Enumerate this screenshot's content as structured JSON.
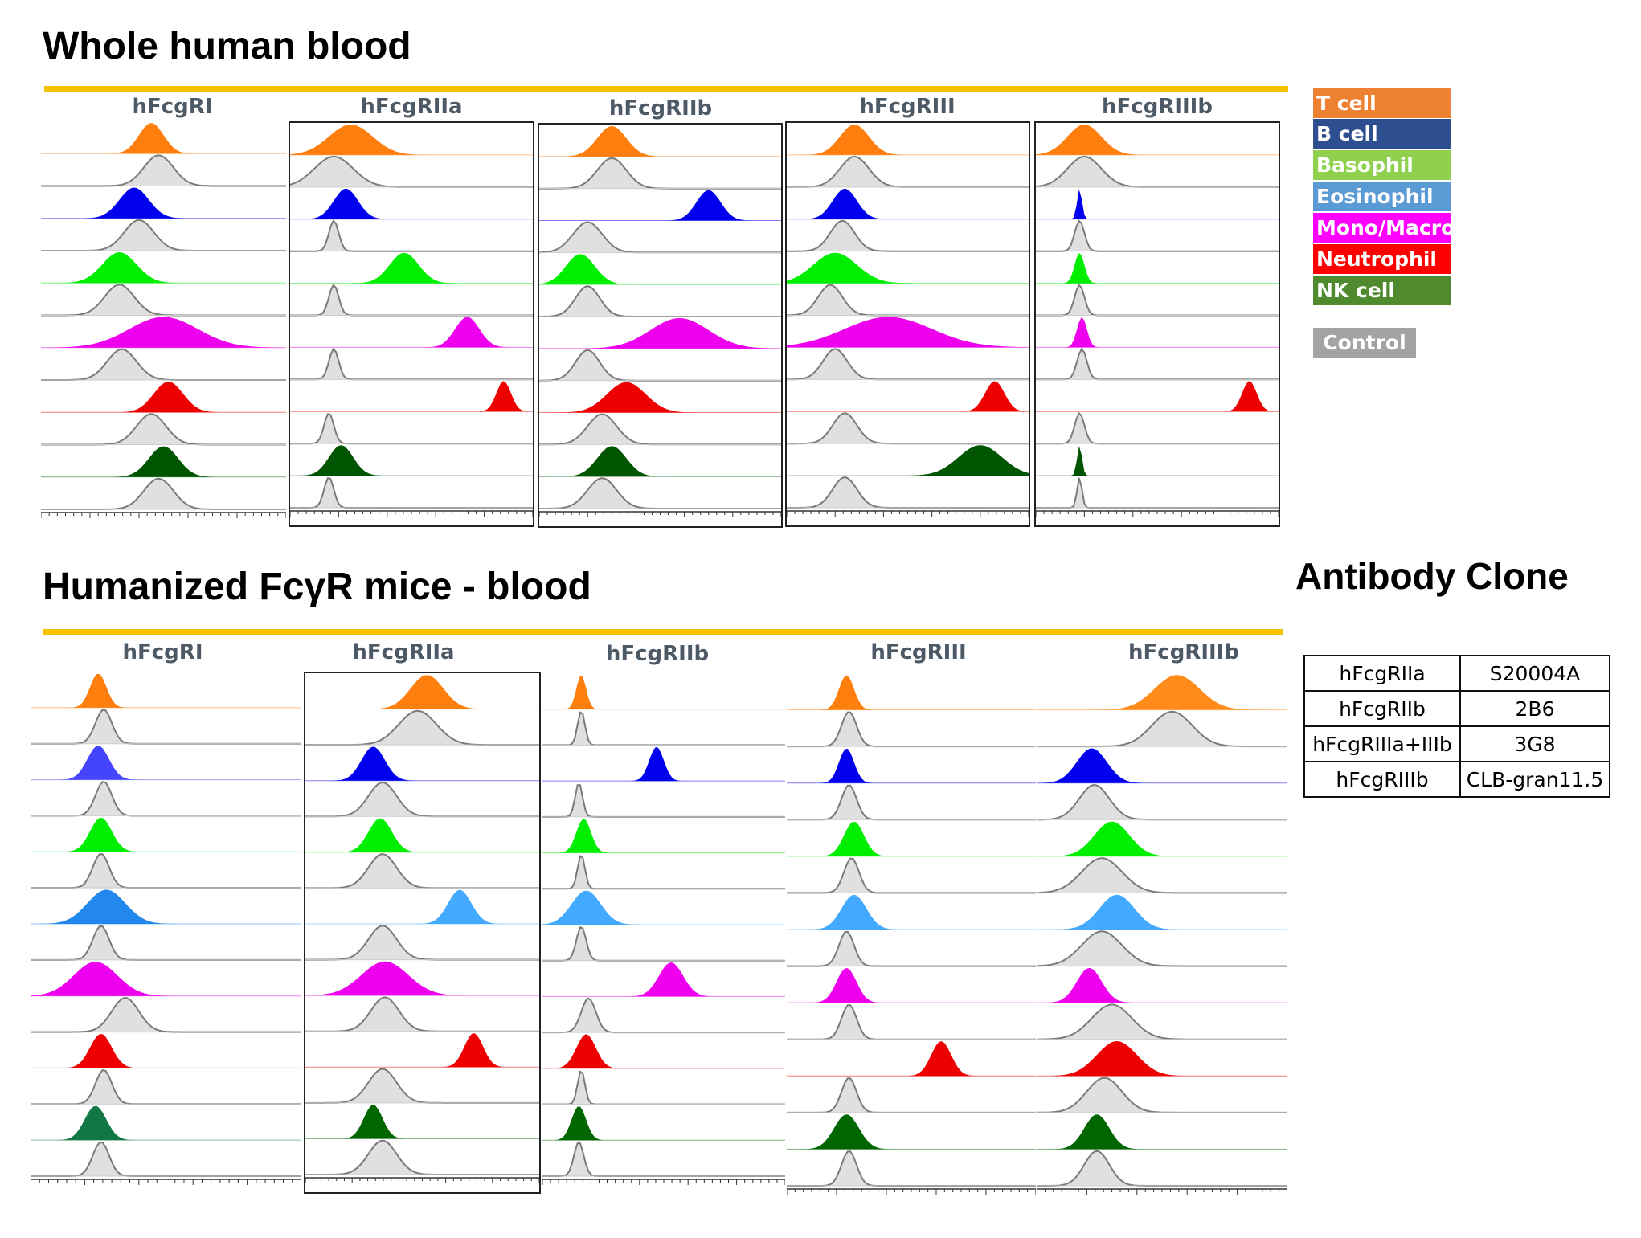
{
  "sections": [
    {
      "title": "Whole human blood"
    },
    {
      "title": "Humanized FcγR mice - blood"
    }
  ],
  "legend": {
    "items": [
      {
        "label": "T cell",
        "color": "#ef8133"
      },
      {
        "label": "B cell",
        "color": "#2e4f8f"
      },
      {
        "label": "Basophil",
        "color": "#8fd14f"
      },
      {
        "label": "Eosinophil",
        "color": "#5b9bd5"
      },
      {
        "label": "Mono/Macro",
        "color": "#ff00ff"
      },
      {
        "label": "Neutrophil",
        "color": "#ff0000"
      },
      {
        "label": "NK cell",
        "color": "#4f8a2f"
      }
    ],
    "control": "Control"
  },
  "clone_table": {
    "title": "Antibody  Clone",
    "rows": [
      [
        "hFcgRIIa",
        "S20004A"
      ],
      [
        "hFcgRIIb",
        "2B6"
      ],
      [
        "hFcgRIIIa+IIIb",
        "3G8"
      ],
      [
        "hFcgRIIIb",
        "CLB-gran11.5"
      ]
    ]
  },
  "chart_data": [
    {
      "type": "area",
      "section": "Whole human blood",
      "title": "hFcgRI",
      "x_scale": "biexponential",
      "tracks": [
        {
          "population": "T cell",
          "color": "#ff7f0e",
          "sample_peak": 0.45,
          "sample_width": 0.05,
          "control_peak": 0.48,
          "control_width": 0.06
        },
        {
          "population": "B cell",
          "color": "#0000ee",
          "sample_peak": 0.38,
          "sample_width": 0.06,
          "control_peak": 0.4,
          "control_width": 0.06
        },
        {
          "population": "Basophil",
          "color": "#00ee00",
          "sample_peak": 0.32,
          "sample_width": 0.07,
          "control_peak": 0.32,
          "control_width": 0.06
        },
        {
          "population": "Mono/Macro",
          "color": "#ee00ee",
          "sample_peak": 0.5,
          "sample_width": 0.14,
          "control_peak": 0.33,
          "control_width": 0.06
        },
        {
          "population": "Neutrophil",
          "color": "#ee0000",
          "sample_peak": 0.52,
          "sample_width": 0.06,
          "control_peak": 0.45,
          "control_width": 0.06
        },
        {
          "population": "NK cell",
          "color": "#005500",
          "sample_peak": 0.5,
          "sample_width": 0.06,
          "control_peak": 0.48,
          "control_width": 0.06
        }
      ]
    },
    {
      "type": "area",
      "section": "Whole human blood",
      "title": "hFcgRIIa",
      "x_scale": "biexponential",
      "tracks": [
        {
          "population": "T cell",
          "color": "#ff7f0e",
          "sample_peak": 0.25,
          "sample_width": 0.09,
          "control_peak": 0.18,
          "control_width": 0.08
        },
        {
          "population": "B cell",
          "color": "#0000ee",
          "sample_peak": 0.23,
          "sample_width": 0.05,
          "control_peak": 0.18,
          "control_width": 0.02
        },
        {
          "population": "Basophil",
          "color": "#00ee00",
          "sample_peak": 0.47,
          "sample_width": 0.06,
          "control_peak": 0.18,
          "control_width": 0.02
        },
        {
          "population": "Mono/Macro",
          "color": "#ee00ee",
          "sample_peak": 0.73,
          "sample_width": 0.05,
          "control_peak": 0.18,
          "control_width": 0.02
        },
        {
          "population": "Neutrophil",
          "color": "#ee0000",
          "sample_peak": 0.88,
          "sample_width": 0.03,
          "control_peak": 0.16,
          "control_width": 0.02
        },
        {
          "population": "NK cell",
          "color": "#005500",
          "sample_peak": 0.21,
          "sample_width": 0.05,
          "control_peak": 0.16,
          "control_width": 0.02
        }
      ]
    },
    {
      "type": "area",
      "section": "Whole human blood",
      "title": "hFcgRIIb",
      "x_scale": "biexponential",
      "tracks": [
        {
          "population": "T cell",
          "color": "#ff7f0e",
          "sample_peak": 0.3,
          "sample_width": 0.06,
          "control_peak": 0.3,
          "control_width": 0.06
        },
        {
          "population": "B cell",
          "color": "#0000ee",
          "sample_peak": 0.7,
          "sample_width": 0.05,
          "control_peak": 0.2,
          "control_width": 0.06
        },
        {
          "population": "Basophil",
          "color": "#00ee00",
          "sample_peak": 0.17,
          "sample_width": 0.06,
          "control_peak": 0.2,
          "control_width": 0.05
        },
        {
          "population": "Mono/Macro",
          "color": "#ee00ee",
          "sample_peak": 0.58,
          "sample_width": 0.12,
          "control_peak": 0.2,
          "control_width": 0.05
        },
        {
          "population": "Neutrophil",
          "color": "#ee0000",
          "sample_peak": 0.36,
          "sample_width": 0.08,
          "control_peak": 0.26,
          "control_width": 0.06
        },
        {
          "population": "NK cell",
          "color": "#005500",
          "sample_peak": 0.3,
          "sample_width": 0.06,
          "control_peak": 0.26,
          "control_width": 0.06
        }
      ]
    },
    {
      "type": "area",
      "section": "Whole human blood",
      "title": "hFcgRIII",
      "x_scale": "biexponential",
      "tracks": [
        {
          "population": "T cell",
          "color": "#ff7f0e",
          "sample_peak": 0.28,
          "sample_width": 0.06,
          "control_peak": 0.28,
          "control_width": 0.06
        },
        {
          "population": "B cell",
          "color": "#0000ee",
          "sample_peak": 0.24,
          "sample_width": 0.05,
          "control_peak": 0.23,
          "control_width": 0.05
        },
        {
          "population": "Basophil",
          "color": "#00ee00",
          "sample_peak": 0.2,
          "sample_width": 0.09,
          "control_peak": 0.18,
          "control_width": 0.05
        },
        {
          "population": "Mono/Macro",
          "color": "#ee00ee",
          "sample_peak": 0.42,
          "sample_width": 0.18,
          "control_peak": 0.2,
          "control_width": 0.05
        },
        {
          "population": "Neutrophil",
          "color": "#ee0000",
          "sample_peak": 0.86,
          "sample_width": 0.04,
          "control_peak": 0.24,
          "control_width": 0.05
        },
        {
          "population": "NK cell",
          "color": "#005500",
          "sample_peak": 0.8,
          "sample_width": 0.09,
          "control_peak": 0.24,
          "control_width": 0.05
        }
      ]
    },
    {
      "type": "area",
      "section": "Whole human blood",
      "title": "hFcgRIIIb",
      "x_scale": "biexponential",
      "tracks": [
        {
          "population": "T cell",
          "color": "#ff7f0e",
          "sample_peak": 0.2,
          "sample_width": 0.07,
          "control_peak": 0.2,
          "control_width": 0.07
        },
        {
          "population": "B cell",
          "color": "#0000ee",
          "sample_peak": 0.18,
          "sample_width": 0.01,
          "control_peak": 0.18,
          "control_width": 0.02
        },
        {
          "population": "Basophil",
          "color": "#00ee00",
          "sample_peak": 0.18,
          "sample_width": 0.02,
          "control_peak": 0.18,
          "control_width": 0.02
        },
        {
          "population": "Mono/Macro",
          "color": "#ee00ee",
          "sample_peak": 0.19,
          "sample_width": 0.02,
          "control_peak": 0.19,
          "control_width": 0.02
        },
        {
          "population": "Neutrophil",
          "color": "#ee0000",
          "sample_peak": 0.88,
          "sample_width": 0.03,
          "control_peak": 0.18,
          "control_width": 0.02
        },
        {
          "population": "NK cell",
          "color": "#005500",
          "sample_peak": 0.18,
          "sample_width": 0.01,
          "control_peak": 0.18,
          "control_width": 0.01
        }
      ]
    },
    {
      "type": "area",
      "section": "Humanized FcγR mice - blood",
      "title": "hFcgRI",
      "x_scale": "biexponential",
      "tracks": [
        {
          "population": "T cell",
          "color": "#ff7f0e",
          "sample_peak": 0.25,
          "sample_width": 0.03,
          "control_peak": 0.27,
          "control_width": 0.03
        },
        {
          "population": "B cell",
          "color": "#4444ff",
          "sample_peak": 0.25,
          "sample_width": 0.04,
          "control_peak": 0.27,
          "control_width": 0.03
        },
        {
          "population": "Basophil",
          "color": "#00ee00",
          "sample_peak": 0.26,
          "sample_width": 0.04,
          "control_peak": 0.26,
          "control_width": 0.03
        },
        {
          "population": "Eosinophil",
          "color": "#2288ee",
          "sample_peak": 0.28,
          "sample_width": 0.07,
          "control_peak": 0.26,
          "control_width": 0.03
        },
        {
          "population": "Mono/Macro",
          "color": "#ee00ee",
          "sample_peak": 0.24,
          "sample_width": 0.08,
          "control_peak": 0.35,
          "control_width": 0.05
        },
        {
          "population": "Neutrophil",
          "color": "#ee0000",
          "sample_peak": 0.26,
          "sample_width": 0.04,
          "control_peak": 0.27,
          "control_width": 0.03
        },
        {
          "population": "NK cell",
          "color": "#117744",
          "sample_peak": 0.24,
          "sample_width": 0.04,
          "control_peak": 0.26,
          "control_width": 0.03
        }
      ]
    },
    {
      "type": "area",
      "section": "Humanized FcγR mice - blood",
      "title": "hFcgRIIa",
      "x_scale": "biexponential",
      "tracks": [
        {
          "population": "T cell",
          "color": "#ff7f0e",
          "sample_peak": 0.52,
          "sample_width": 0.07,
          "control_peak": 0.48,
          "control_width": 0.08
        },
        {
          "population": "B cell",
          "color": "#0000ee",
          "sample_peak": 0.29,
          "sample_width": 0.05,
          "control_peak": 0.33,
          "control_width": 0.06
        },
        {
          "population": "Basophil",
          "color": "#00ee00",
          "sample_peak": 0.32,
          "sample_width": 0.05,
          "control_peak": 0.33,
          "control_width": 0.06
        },
        {
          "population": "Eosinophil",
          "color": "#44aaff",
          "sample_peak": 0.66,
          "sample_width": 0.05,
          "control_peak": 0.33,
          "control_width": 0.06
        },
        {
          "population": "Mono/Macro",
          "color": "#ee00ee",
          "sample_peak": 0.34,
          "sample_width": 0.1,
          "control_peak": 0.34,
          "control_width": 0.06
        },
        {
          "population": "Neutrophil",
          "color": "#ee0000",
          "sample_peak": 0.72,
          "sample_width": 0.04,
          "control_peak": 0.33,
          "control_width": 0.06
        },
        {
          "population": "NK cell",
          "color": "#006600",
          "sample_peak": 0.29,
          "sample_width": 0.04,
          "control_peak": 0.33,
          "control_width": 0.06
        }
      ]
    },
    {
      "type": "area",
      "section": "Humanized FcγR mice - blood",
      "title": "hFcgRIIb",
      "x_scale": "biexponential",
      "tracks": [
        {
          "population": "T cell",
          "color": "#ff7f0e",
          "sample_peak": 0.16,
          "sample_width": 0.02,
          "control_peak": 0.16,
          "control_width": 0.015
        },
        {
          "population": "B cell",
          "color": "#0000ee",
          "sample_peak": 0.47,
          "sample_width": 0.03,
          "control_peak": 0.15,
          "control_width": 0.015
        },
        {
          "population": "Basophil",
          "color": "#00ee00",
          "sample_peak": 0.17,
          "sample_width": 0.03,
          "control_peak": 0.16,
          "control_width": 0.015
        },
        {
          "population": "Eosinophil",
          "color": "#44aaff",
          "sample_peak": 0.18,
          "sample_width": 0.06,
          "control_peak": 0.16,
          "control_width": 0.02
        },
        {
          "population": "Mono/Macro",
          "color": "#ee00ee",
          "sample_peak": 0.53,
          "sample_width": 0.05,
          "control_peak": 0.19,
          "control_width": 0.03
        },
        {
          "population": "Neutrophil",
          "color": "#ee0000",
          "sample_peak": 0.18,
          "sample_width": 0.04,
          "control_peak": 0.16,
          "control_width": 0.015
        },
        {
          "population": "NK cell",
          "color": "#006600",
          "sample_peak": 0.15,
          "sample_width": 0.03,
          "control_peak": 0.15,
          "control_width": 0.02
        }
      ]
    },
    {
      "type": "area",
      "section": "Humanized FcγR mice - blood",
      "title": "hFcgRIII",
      "x_scale": "biexponential",
      "tracks": [
        {
          "population": "T cell",
          "color": "#ff7f0e",
          "sample_peak": 0.24,
          "sample_width": 0.03,
          "control_peak": 0.25,
          "control_width": 0.03
        },
        {
          "population": "B cell",
          "color": "#0000ee",
          "sample_peak": 0.24,
          "sample_width": 0.03,
          "control_peak": 0.25,
          "control_width": 0.03
        },
        {
          "population": "Basophil",
          "color": "#00ee00",
          "sample_peak": 0.27,
          "sample_width": 0.04,
          "control_peak": 0.26,
          "control_width": 0.03
        },
        {
          "population": "Eosinophil",
          "color": "#44aaff",
          "sample_peak": 0.27,
          "sample_width": 0.05,
          "control_peak": 0.24,
          "control_width": 0.03
        },
        {
          "population": "Mono/Macro",
          "color": "#ee00ee",
          "sample_peak": 0.24,
          "sample_width": 0.04,
          "control_peak": 0.25,
          "control_width": 0.03
        },
        {
          "population": "Neutrophil",
          "color": "#ee0000",
          "sample_peak": 0.62,
          "sample_width": 0.04,
          "control_peak": 0.25,
          "control_width": 0.03
        },
        {
          "population": "NK cell",
          "color": "#006600",
          "sample_peak": 0.24,
          "sample_width": 0.05,
          "control_peak": 0.25,
          "control_width": 0.03
        }
      ]
    },
    {
      "type": "area",
      "section": "Humanized FcγR mice - blood",
      "title": "hFcgRIIIb",
      "x_scale": "biexponential",
      "tracks": [
        {
          "population": "T cell",
          "color": "#ff8c1a",
          "sample_peak": 0.56,
          "sample_width": 0.09,
          "control_peak": 0.54,
          "control_width": 0.08
        },
        {
          "population": "B cell",
          "color": "#0000ee",
          "sample_peak": 0.22,
          "sample_width": 0.06,
          "control_peak": 0.23,
          "control_width": 0.06
        },
        {
          "population": "Basophil",
          "color": "#00ee00",
          "sample_peak": 0.3,
          "sample_width": 0.07,
          "control_peak": 0.26,
          "control_width": 0.08
        },
        {
          "population": "Eosinophil",
          "color": "#44aaff",
          "sample_peak": 0.32,
          "sample_width": 0.07,
          "control_peak": 0.26,
          "control_width": 0.08
        },
        {
          "population": "Mono/Macro",
          "color": "#ee00ee",
          "sample_peak": 0.21,
          "sample_width": 0.05,
          "control_peak": 0.3,
          "control_width": 0.08
        },
        {
          "population": "Neutrophil",
          "color": "#ee0000",
          "sample_peak": 0.32,
          "sample_width": 0.08,
          "control_peak": 0.27,
          "control_width": 0.07
        },
        {
          "population": "NK cell",
          "color": "#006600",
          "sample_peak": 0.24,
          "sample_width": 0.05,
          "control_peak": 0.24,
          "control_width": 0.05
        }
      ]
    }
  ]
}
